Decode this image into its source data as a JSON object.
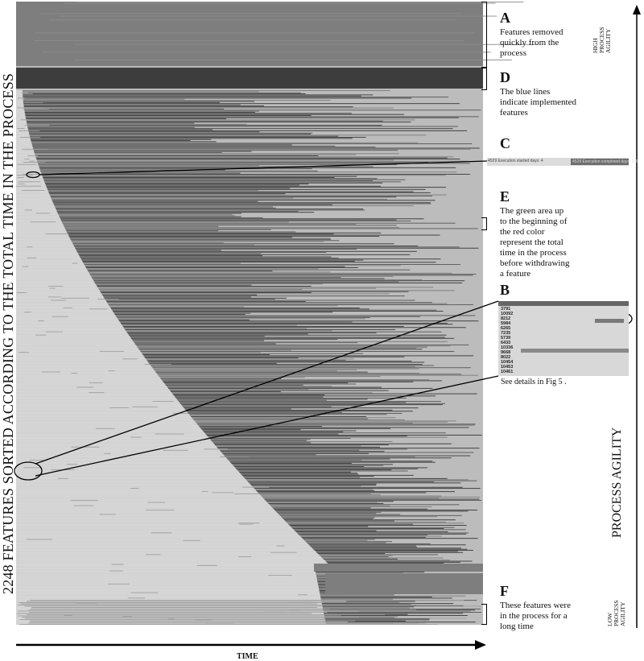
{
  "y_axis_label": "2248 FEATURES SORTED ACCORDING TO THE TOTAL TIME IN THE PROCESS",
  "x_axis_label": "TIME",
  "process_agility_label": "PROCESS AGILITY",
  "high_label": [
    "HIGH",
    "PROCESS",
    "AGILITY"
  ],
  "low_label": [
    "LOW",
    "PROCESS",
    "AGILITY"
  ],
  "annotations": {
    "A": {
      "letter": "A",
      "lines": [
        "Features removed",
        "quickly from the",
        "process"
      ]
    },
    "D": {
      "letter": "D",
      "lines": [
        "The blue lines",
        "indicate implemented",
        "features"
      ]
    },
    "C": {
      "letter": "C",
      "left_text": "4529 Execution started days: 4",
      "right_text": "4529 Execution completed days: 218"
    },
    "E": {
      "letter": "E",
      "lines": [
        "The green area up",
        "to the beginning of",
        "the red color",
        "represent the total",
        "time in the process",
        "before withdrawing",
        "a feature"
      ]
    },
    "B": {
      "letter": "B",
      "caption": "See details in Fig 5 .",
      "ids": [
        "3791",
        "10092",
        "8212",
        "5984",
        "6265",
        "7235",
        "5739",
        "6433",
        "10336",
        "9668",
        "8022",
        "10454",
        "10453",
        "10461"
      ]
    },
    "F": {
      "letter": "F",
      "lines": [
        "These features were",
        "in the process for a",
        "long time"
      ]
    }
  },
  "colors": {
    "time_before_withdraw_green": "#d6d6d6",
    "withdrawn_red": "#7e7e7e",
    "implemented_blue": "#3d3d3d",
    "remaining_light": "#bcbcbc"
  },
  "chart_data": {
    "type": "heatmap",
    "title": "",
    "xlabel": "TIME",
    "ylabel": "2248 FEATURES SORTED ACCORDING TO THE TOTAL TIME IN THE PROCESS",
    "feature_count": 2248,
    "grid": false,
    "legend": "none",
    "segments": [
      {
        "name": "A",
        "description": "Features removed quickly from the process",
        "rows_fraction": [
          0.0,
          0.11
        ]
      },
      {
        "name": "D",
        "description": "The blue lines indicate implemented features",
        "rows_fraction": [
          0.11,
          0.14
        ]
      },
      {
        "name": "F",
        "description": "These features were in the process for a long time",
        "rows_fraction": [
          0.95,
          1.0
        ]
      }
    ]
  }
}
